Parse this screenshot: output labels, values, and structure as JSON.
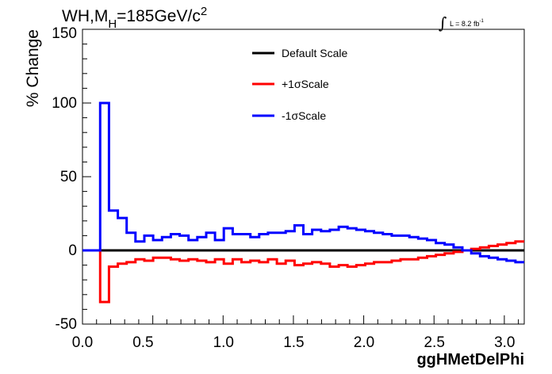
{
  "chart_data": {
    "type": "line",
    "title": {
      "prefix": "WH,M",
      "sub": "H",
      "mid": "=185GeV/c",
      "sup": "2"
    },
    "lumi": {
      "integral": "∫",
      "text": "L = 8.2 fb",
      "sup": "-1"
    },
    "xlabel": "ggHMetDelPhi",
    "ylabel": "% Change",
    "xlim": [
      0.0,
      3.1416
    ],
    "ylim": [
      -50,
      150
    ],
    "xticks": [
      "0.0",
      "0.5",
      "1.0",
      "1.5",
      "2.0",
      "2.5",
      "3.0"
    ],
    "yticks": [
      "-50",
      "0",
      "50",
      "100",
      "150"
    ],
    "bin_edges": [
      0.0,
      0.0628,
      0.1257,
      0.1885,
      0.2513,
      0.3142,
      0.377,
      0.4398,
      0.5027,
      0.5655,
      0.6283,
      0.6912,
      0.754,
      0.8168,
      0.8796,
      0.9425,
      1.0053,
      1.0681,
      1.131,
      1.1938,
      1.2566,
      1.3195,
      1.3823,
      1.4451,
      1.508,
      1.5708,
      1.6336,
      1.6965,
      1.7593,
      1.8221,
      1.885,
      1.9478,
      2.0106,
      2.0735,
      2.1363,
      2.1991,
      2.2619,
      2.3248,
      2.3876,
      2.4504,
      2.5133,
      2.5761,
      2.6389,
      2.7018,
      2.7646,
      2.8274,
      2.8903,
      2.9531,
      3.0159,
      3.0788,
      3.1416
    ],
    "series": [
      {
        "name": "Default Scale",
        "color": "#000000",
        "values": [
          0,
          0,
          0,
          0,
          0,
          0,
          0,
          0,
          0,
          0,
          0,
          0,
          0,
          0,
          0,
          0,
          0,
          0,
          0,
          0,
          0,
          0,
          0,
          0,
          0,
          0,
          0,
          0,
          0,
          0,
          0,
          0,
          0,
          0,
          0,
          0,
          0,
          0,
          0,
          0,
          0,
          0,
          0,
          0,
          0,
          0,
          0,
          0,
          0,
          0
        ]
      },
      {
        "name": "+1σScale",
        "color": "#ff0000",
        "values": [
          0,
          0,
          -35,
          -11,
          -9,
          -8,
          -6,
          -7,
          -5,
          -5,
          -6,
          -7,
          -6,
          -7,
          -8,
          -6,
          -9,
          -6,
          -8,
          -7,
          -8,
          -6,
          -9,
          -7,
          -10,
          -9,
          -8,
          -9,
          -11,
          -10,
          -11,
          -10,
          -9,
          -8,
          -8,
          -7,
          -6,
          -6,
          -5,
          -4,
          -3,
          -2,
          -1,
          0,
          1,
          2,
          3,
          4,
          5,
          6
        ]
      },
      {
        "name": "-1σScale",
        "color": "#0000ff",
        "values": [
          0,
          0,
          100,
          27,
          22,
          12,
          6,
          10,
          7,
          9,
          11,
          10,
          7,
          9,
          12,
          7,
          15,
          11,
          11,
          9,
          11,
          12,
          12,
          13,
          17,
          11,
          14,
          13,
          14,
          16,
          15,
          14,
          13,
          12,
          11,
          10,
          10,
          9,
          8,
          7,
          5,
          4,
          2,
          0,
          -2,
          -4,
          -5,
          -6,
          -7,
          -8
        ]
      }
    ],
    "legend_position": "top-center"
  }
}
